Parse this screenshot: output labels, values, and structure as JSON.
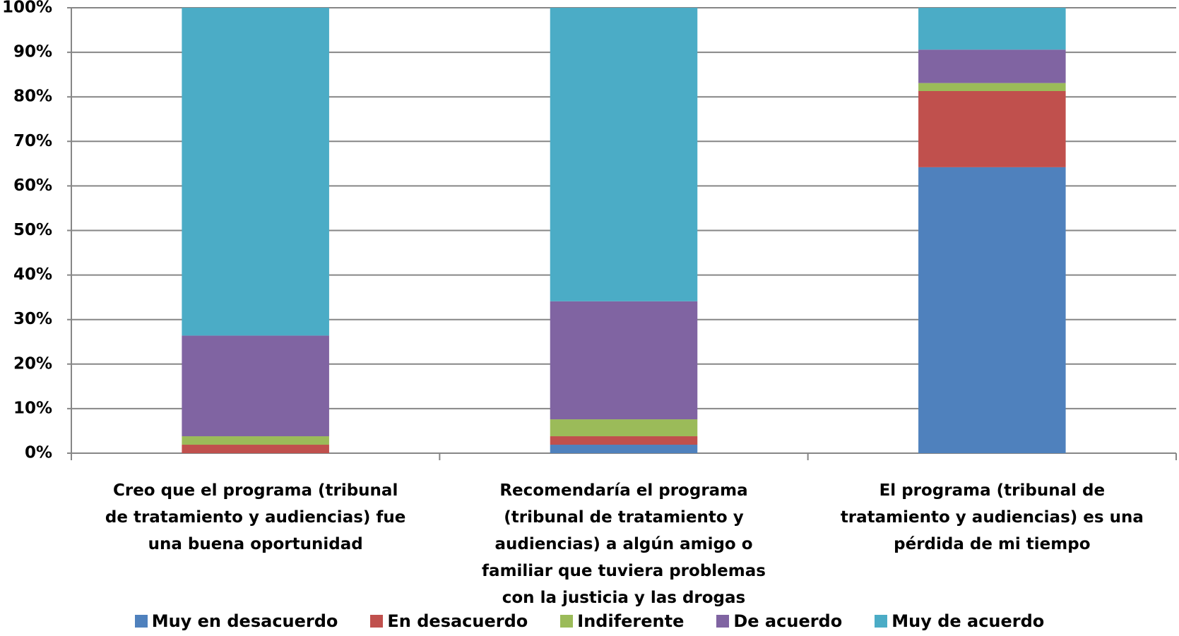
{
  "chart_data": {
    "type": "stacked_bar",
    "categories": [
      "Creo que el programa (tribunal de tratamiento y audiencias) fue una buena oportunidad",
      "Recomendaría el programa (tribunal de tratamiento y audiencias) a algún amigo o familiar que tuviera problemas con la justicia y las drogas",
      "El programa (tribunal de tratamiento y audiencias) es una pérdida de mi tiempo"
    ],
    "series": [
      {
        "name": "Muy en desacuerdo",
        "color": "#4f81bd",
        "values": [
          0,
          1.9,
          64.2
        ]
      },
      {
        "name": "En desacuerdo",
        "color": "#c0504d",
        "values": [
          1.9,
          1.9,
          17.1
        ]
      },
      {
        "name": "Indiferente",
        "color": "#9bbb59",
        "values": [
          1.9,
          3.8,
          1.8
        ]
      },
      {
        "name": "De acuerdo",
        "color": "#8064a2",
        "values": [
          22.6,
          26.5,
          7.5
        ]
      },
      {
        "name": "Muy de acuerdo",
        "color": "#4bacc6",
        "values": [
          73.6,
          65.9,
          9.4
        ]
      }
    ],
    "ylim": [
      0,
      100
    ],
    "yticks": [
      {
        "value": 0,
        "label": "0%"
      },
      {
        "value": 10,
        "label": "10%"
      },
      {
        "value": 20,
        "label": "20%"
      },
      {
        "value": 30,
        "label": "30%"
      },
      {
        "value": 40,
        "label": "40%"
      },
      {
        "value": 50,
        "label": "50%"
      },
      {
        "value": 60,
        "label": "60%"
      },
      {
        "value": 70,
        "label": "70%"
      },
      {
        "value": 80,
        "label": "80%"
      },
      {
        "value": 90,
        "label": "90%"
      },
      {
        "value": 100,
        "label": "100%"
      }
    ],
    "grid": true,
    "legend": "bottom"
  }
}
